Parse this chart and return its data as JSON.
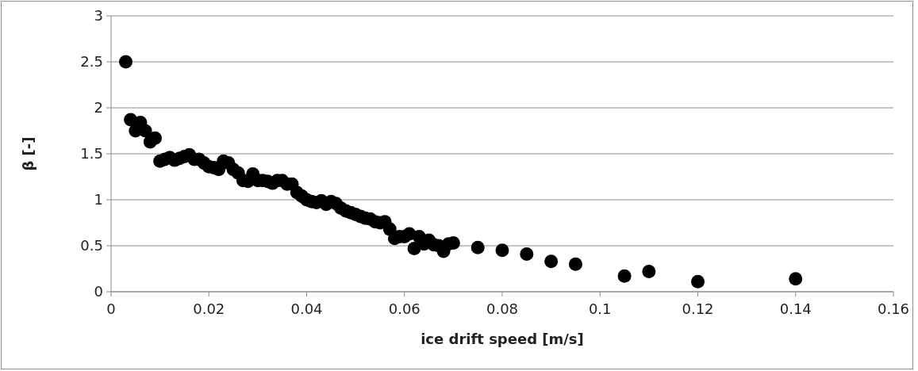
{
  "chart_data": {
    "type": "scatter",
    "xlabel": "ice drift speed [m/s]",
    "ylabel": "β [-]",
    "xlim": [
      0,
      0.16
    ],
    "xticks": [
      0,
      0.02,
      0.04,
      0.06,
      0.08,
      0.1,
      0.12,
      0.14,
      0.16
    ],
    "ylim": [
      0,
      3
    ],
    "yticks": [
      0,
      0.5,
      1,
      1.5,
      2,
      2.5,
      3
    ],
    "grid": "y",
    "marker": "circle",
    "series": [
      {
        "color": "#000000",
        "x": [
          0.003,
          0.004,
          0.005,
          0.006,
          0.007,
          0.008,
          0.009,
          0.01,
          0.011,
          0.012,
          0.013,
          0.014,
          0.015,
          0.016,
          0.017,
          0.018,
          0.019,
          0.02,
          0.021,
          0.022,
          0.023,
          0.024,
          0.025,
          0.026,
          0.027,
          0.028,
          0.029,
          0.03,
          0.031,
          0.032,
          0.033,
          0.034,
          0.035,
          0.036,
          0.037,
          0.038,
          0.039,
          0.04,
          0.041,
          0.042,
          0.043,
          0.044,
          0.045,
          0.046,
          0.047,
          0.048,
          0.049,
          0.05,
          0.051,
          0.052,
          0.053,
          0.054,
          0.055,
          0.056,
          0.057,
          0.058,
          0.059,
          0.06,
          0.061,
          0.062,
          0.063,
          0.064,
          0.065,
          0.066,
          0.067,
          0.068,
          0.069,
          0.07,
          0.075,
          0.08,
          0.085,
          0.09,
          0.095,
          0.105,
          0.11,
          0.12,
          0.14
        ],
        "values": [
          2.5,
          1.87,
          1.75,
          1.84,
          1.75,
          1.63,
          1.67,
          1.42,
          1.44,
          1.46,
          1.43,
          1.45,
          1.47,
          1.49,
          1.44,
          1.44,
          1.4,
          1.36,
          1.35,
          1.33,
          1.42,
          1.4,
          1.33,
          1.29,
          1.21,
          1.2,
          1.28,
          1.21,
          1.21,
          1.2,
          1.18,
          1.21,
          1.21,
          1.17,
          1.17,
          1.08,
          1.04,
          1.0,
          0.98,
          0.97,
          0.99,
          0.95,
          0.98,
          0.96,
          0.91,
          0.88,
          0.86,
          0.84,
          0.82,
          0.8,
          0.79,
          0.76,
          0.75,
          0.76,
          0.68,
          0.58,
          0.6,
          0.6,
          0.63,
          0.47,
          0.6,
          0.52,
          0.56,
          0.51,
          0.5,
          0.44,
          0.52,
          0.53,
          0.48,
          0.45,
          0.41,
          0.33,
          0.3,
          0.17,
          0.22,
          0.11,
          0.14
        ]
      }
    ]
  }
}
